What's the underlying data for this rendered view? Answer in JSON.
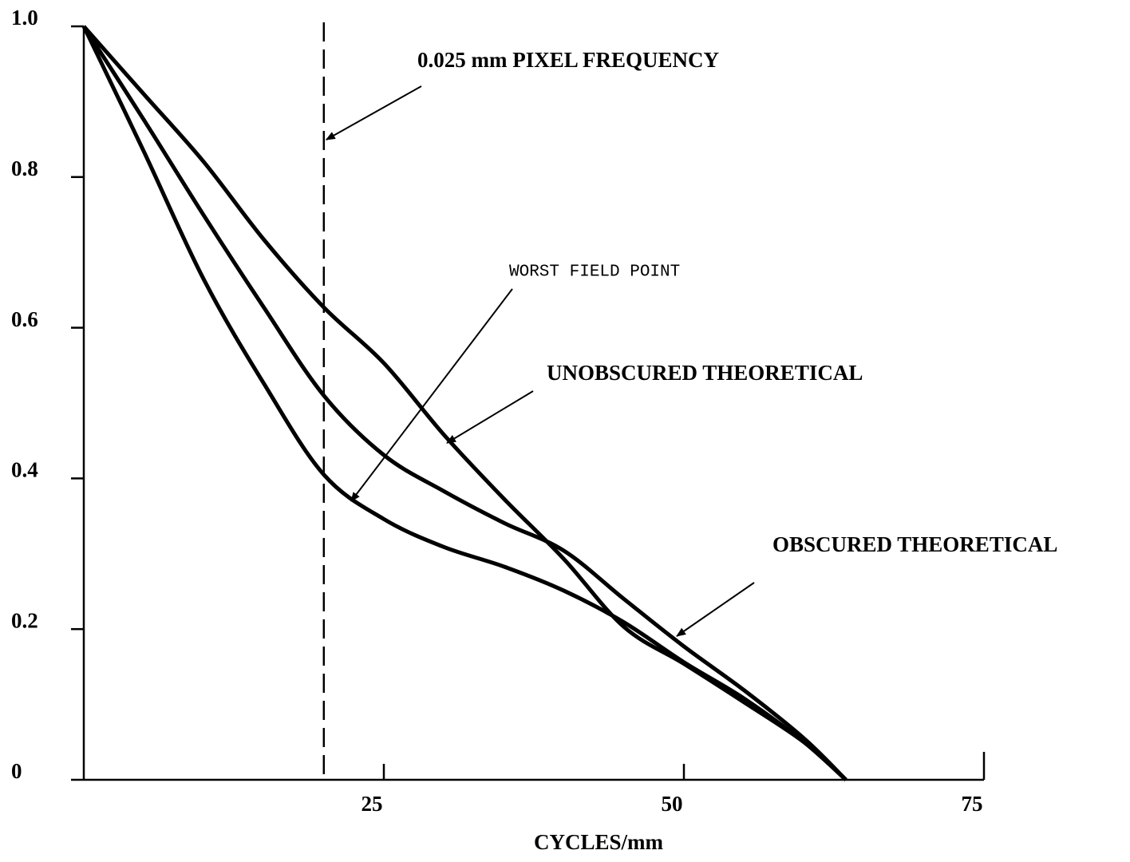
{
  "chart_data": {
    "type": "line",
    "x_label": "CYCLES/mm",
    "x": [
      0,
      5,
      10,
      15,
      20,
      25,
      30,
      35,
      40,
      45,
      50,
      55,
      60,
      63.5
    ],
    "series": [
      {
        "name": "UNOBSCURED THEORETICAL",
        "color": "#000000",
        "values": [
          1.0,
          0.91,
          0.82,
          0.717,
          0.627,
          0.553,
          0.458,
          0.373,
          0.293,
          0.203,
          0.154,
          0.103,
          0.05,
          0
        ]
      },
      {
        "name": "OBSCURED THEORETICAL",
        "color": "#000000",
        "values": [
          1.0,
          0.876,
          0.749,
          0.627,
          0.51,
          0.431,
          0.383,
          0.341,
          0.304,
          0.24,
          0.177,
          0.119,
          0.055,
          0
        ]
      },
      {
        "name": "WORST FIELD POINT",
        "color": "#000000",
        "values": [
          1.0,
          0.834,
          0.664,
          0.526,
          0.405,
          0.346,
          0.309,
          0.283,
          0.251,
          0.209,
          0.156,
          0.108,
          0.05,
          0
        ]
      }
    ],
    "reference_line": {
      "x": 20,
      "label": "0.025 mm PIXEL FREQUENCY"
    },
    "xlim": [
      0,
      75
    ],
    "xticks": [
      25,
      50,
      75
    ],
    "ylim": [
      0,
      1
    ],
    "yticks": [
      0,
      0.2,
      0.4,
      0.6,
      0.8,
      {
        "value": 1,
        "label": "1.0"
      }
    ],
    "grid": false
  }
}
